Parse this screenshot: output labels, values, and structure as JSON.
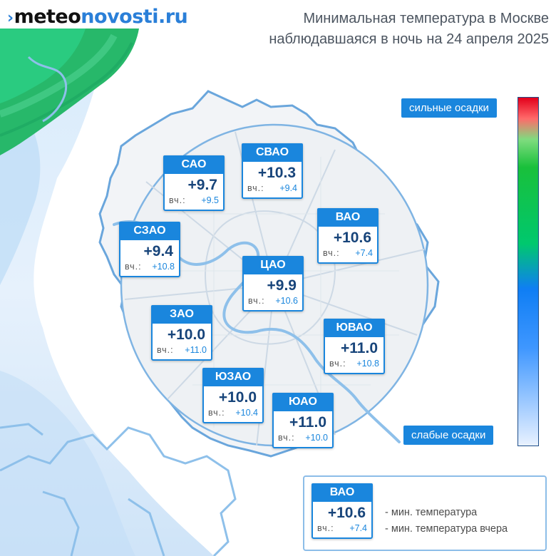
{
  "brand": {
    "part1": "meteo",
    "part2": "novosti.ru",
    "mark": "›"
  },
  "title": {
    "line1": "Минимальная температура в Москве",
    "line2": "наблюдавшаяся в ночь на 24 апреля 2025"
  },
  "scale": {
    "top_label": "сильные осадки",
    "bottom_label": "слабые осадки"
  },
  "districts": [
    {
      "name": "САО",
      "temp": "+9.7",
      "prev_label": "вч.:",
      "prev": "+9.5"
    },
    {
      "name": "СВАО",
      "temp": "+10.3",
      "prev_label": "вч.:",
      "prev": "+9.4"
    },
    {
      "name": "ВАО",
      "temp": "+10.6",
      "prev_label": "вч.:",
      "prev": "+7.4"
    },
    {
      "name": "СЗАО",
      "temp": "+9.4",
      "prev_label": "вч.:",
      "prev": "+10.8"
    },
    {
      "name": "ЦАО",
      "temp": "+9.9",
      "prev_label": "вч.:",
      "prev": "+10.6"
    },
    {
      "name": "ЗАО",
      "temp": "+10.0",
      "prev_label": "вч.:",
      "prev": "+11.0"
    },
    {
      "name": "ЮВАО",
      "temp": "+11.0",
      "prev_label": "вч.:",
      "prev": "+10.8"
    },
    {
      "name": "ЮЗАО",
      "temp": "+10.0",
      "prev_label": "вч.:",
      "prev": "+10.4"
    },
    {
      "name": "ЮАО",
      "temp": "+11.0",
      "prev_label": "вч.:",
      "prev": "+10.0"
    }
  ],
  "legend": {
    "sample": {
      "name": "ВАО",
      "temp": "+10.6",
      "prev_label": "вч.:",
      "prev": "+7.4"
    },
    "line1": "- мин. температура",
    "line2": "- мин. температура вчера"
  }
}
